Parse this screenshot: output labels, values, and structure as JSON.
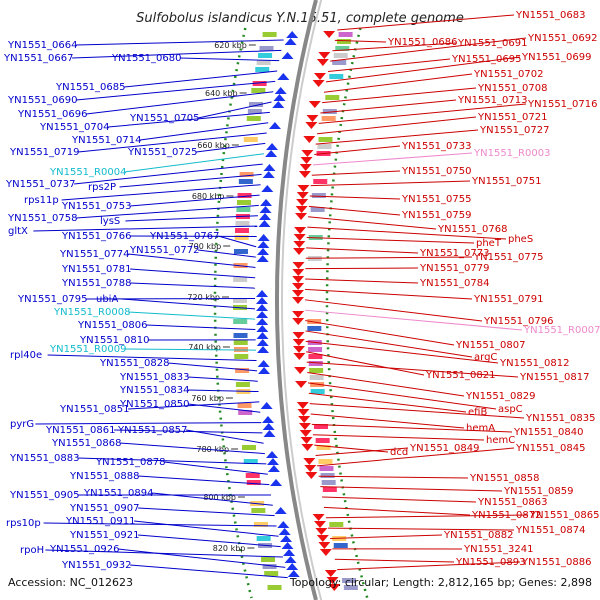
{
  "title": "Sulfobolus islandicus Y.N.15.51, complete genome",
  "footer": {
    "accession": "Accession: NC_012623",
    "summary": "Topology: circular; Length: 2,812,165 bp; Genes: 2,898"
  },
  "kbp_ticks": [
    "620 kbp",
    "640 kbp",
    "660 kbp",
    "680 kbp",
    "700 kbp",
    "720 kbp",
    "740 kbp",
    "760 kbp",
    "780 kbp",
    "800 kbp",
    "820 kbp"
  ],
  "left_labels": [
    {
      "text": "YN1551_0664",
      "kind": "gene"
    },
    {
      "text": "YN1551_0667",
      "kind": "gene"
    },
    {
      "text": "YN1551_0680",
      "kind": "gene"
    },
    {
      "text": "YN1551_0685",
      "kind": "gene"
    },
    {
      "text": "YN1551_0690",
      "kind": "gene"
    },
    {
      "text": "YN1551_0696",
      "kind": "gene"
    },
    {
      "text": "YN1551_0705",
      "kind": "gene"
    },
    {
      "text": "YN1551_0704",
      "kind": "gene"
    },
    {
      "text": "YN1551_0714",
      "kind": "gene"
    },
    {
      "text": "YN1551_0719",
      "kind": "gene"
    },
    {
      "text": "YN1551_0725",
      "kind": "gene"
    },
    {
      "text": "YN1551_R0004",
      "kind": "rna"
    },
    {
      "text": "YN1551_0737",
      "kind": "gene"
    },
    {
      "text": "rps2P",
      "kind": "gene"
    },
    {
      "text": "rps11p",
      "kind": "gene"
    },
    {
      "text": "YN1551_0753",
      "kind": "gene"
    },
    {
      "text": "YN1551_0758",
      "kind": "gene"
    },
    {
      "text": "lysS",
      "kind": "gene"
    },
    {
      "text": "gltX",
      "kind": "gene"
    },
    {
      "text": "YN1551_0766",
      "kind": "gene"
    },
    {
      "text": "YN1551_0767",
      "kind": "gene"
    },
    {
      "text": "YN1551_0772",
      "kind": "gene"
    },
    {
      "text": "YN1551_0774",
      "kind": "gene"
    },
    {
      "text": "YN1551_0781",
      "kind": "gene"
    },
    {
      "text": "YN1551_0788",
      "kind": "gene"
    },
    {
      "text": "YN1551_0795",
      "kind": "gene"
    },
    {
      "text": "ubiA",
      "kind": "gene"
    },
    {
      "text": "YN1551_R0008",
      "kind": "rna"
    },
    {
      "text": "YN1551_0806",
      "kind": "gene"
    },
    {
      "text": "YN1551_0810",
      "kind": "gene"
    },
    {
      "text": "YN1551_R0009",
      "kind": "rna"
    },
    {
      "text": "rpl40e",
      "kind": "gene"
    },
    {
      "text": "YN1551_0828",
      "kind": "gene"
    },
    {
      "text": "YN1551_0833",
      "kind": "gene"
    },
    {
      "text": "YN1551_0834",
      "kind": "gene"
    },
    {
      "text": "YN1551_0851",
      "kind": "gene"
    },
    {
      "text": "YN1551_0850",
      "kind": "gene"
    },
    {
      "text": "pyrG",
      "kind": "gene"
    },
    {
      "text": "YN1551_0861",
      "kind": "gene"
    },
    {
      "text": "YN1551_0857",
      "kind": "gene"
    },
    {
      "text": "YN1551_0868",
      "kind": "gene"
    },
    {
      "text": "YN1551_0883",
      "kind": "gene"
    },
    {
      "text": "YN1551_0878",
      "kind": "gene"
    },
    {
      "text": "YN1551_0888",
      "kind": "gene"
    },
    {
      "text": "YN1551_0905",
      "kind": "gene"
    },
    {
      "text": "YN1551_0894",
      "kind": "gene"
    },
    {
      "text": "YN1551_0907",
      "kind": "gene"
    },
    {
      "text": "rps10p",
      "kind": "gene"
    },
    {
      "text": "YN1551_0911",
      "kind": "gene"
    },
    {
      "text": "YN1551_0921",
      "kind": "gene"
    },
    {
      "text": "rpoH",
      "kind": "gene"
    },
    {
      "text": "YN1551_0926",
      "kind": "gene"
    },
    {
      "text": "YN1551_0932",
      "kind": "gene"
    }
  ],
  "right_labels": [
    {
      "text": "YN1551_0683",
      "kind": "gene"
    },
    {
      "text": "YN1551_0686",
      "kind": "gene"
    },
    {
      "text": "YN1551_0691",
      "kind": "gene"
    },
    {
      "text": "YN1551_0692",
      "kind": "gene"
    },
    {
      "text": "YN1551_0695",
      "kind": "gene"
    },
    {
      "text": "YN1551_0699",
      "kind": "gene"
    },
    {
      "text": "YN1551_0702",
      "kind": "gene"
    },
    {
      "text": "YN1551_0708",
      "kind": "gene"
    },
    {
      "text": "YN1551_0713",
      "kind": "gene"
    },
    {
      "text": "YN1551_0716",
      "kind": "gene"
    },
    {
      "text": "YN1551_0721",
      "kind": "gene"
    },
    {
      "text": "YN1551_0727",
      "kind": "gene"
    },
    {
      "text": "YN1551_0733",
      "kind": "gene"
    },
    {
      "text": "YN1551_R0003",
      "kind": "rna"
    },
    {
      "text": "YN1551_0750",
      "kind": "gene"
    },
    {
      "text": "YN1551_0751",
      "kind": "gene"
    },
    {
      "text": "YN1551_0755",
      "kind": "gene"
    },
    {
      "text": "YN1551_0759",
      "kind": "gene"
    },
    {
      "text": "YN1551_0768",
      "kind": "gene"
    },
    {
      "text": "pheS",
      "kind": "gene"
    },
    {
      "text": "pheT",
      "kind": "gene"
    },
    {
      "text": "YN1551_0773",
      "kind": "gene"
    },
    {
      "text": "YN1551_0775",
      "kind": "gene"
    },
    {
      "text": "YN1551_0779",
      "kind": "gene"
    },
    {
      "text": "YN1551_0784",
      "kind": "gene"
    },
    {
      "text": "YN1551_0791",
      "kind": "gene"
    },
    {
      "text": "YN1551_0796",
      "kind": "gene"
    },
    {
      "text": "YN1551_R0007",
      "kind": "rna"
    },
    {
      "text": "YN1551_0807",
      "kind": "gene"
    },
    {
      "text": "argC",
      "kind": "gene"
    },
    {
      "text": "YN1551_0812",
      "kind": "gene"
    },
    {
      "text": "YN1551_0821",
      "kind": "gene"
    },
    {
      "text": "YN1551_0817",
      "kind": "gene"
    },
    {
      "text": "YN1551_0829",
      "kind": "gene"
    },
    {
      "text": "aspC",
      "kind": "gene"
    },
    {
      "text": "efiB",
      "kind": "gene"
    },
    {
      "text": "YN1551_0835",
      "kind": "gene"
    },
    {
      "text": "hemA",
      "kind": "gene"
    },
    {
      "text": "YN1551_0840",
      "kind": "gene"
    },
    {
      "text": "hemC",
      "kind": "gene"
    },
    {
      "text": "dcd",
      "kind": "gene"
    },
    {
      "text": "YN1551_0849",
      "kind": "gene"
    },
    {
      "text": "YN1551_0845",
      "kind": "gene"
    },
    {
      "text": "YN1551_0858",
      "kind": "gene"
    },
    {
      "text": "YN1551_0859",
      "kind": "gene"
    },
    {
      "text": "YN1551_0863",
      "kind": "gene"
    },
    {
      "text": "YN1551_0872",
      "kind": "gene"
    },
    {
      "text": "YN1551_0865",
      "kind": "gene"
    },
    {
      "text": "YN1551_0874",
      "kind": "gene"
    },
    {
      "text": "YN1551_0882",
      "kind": "gene"
    },
    {
      "text": "YN1551_3241",
      "kind": "gene"
    },
    {
      "text": "YN1551_0893",
      "kind": "gene"
    },
    {
      "text": "YN1551_0886",
      "kind": "gene"
    }
  ],
  "colors": {
    "left_gene": "#0000cc",
    "right_gene": "#cc0000",
    "left_rna": "#11bbcc",
    "right_rna": "#ee88cc",
    "backbone": "#888888",
    "ring_dots": "#228822"
  }
}
